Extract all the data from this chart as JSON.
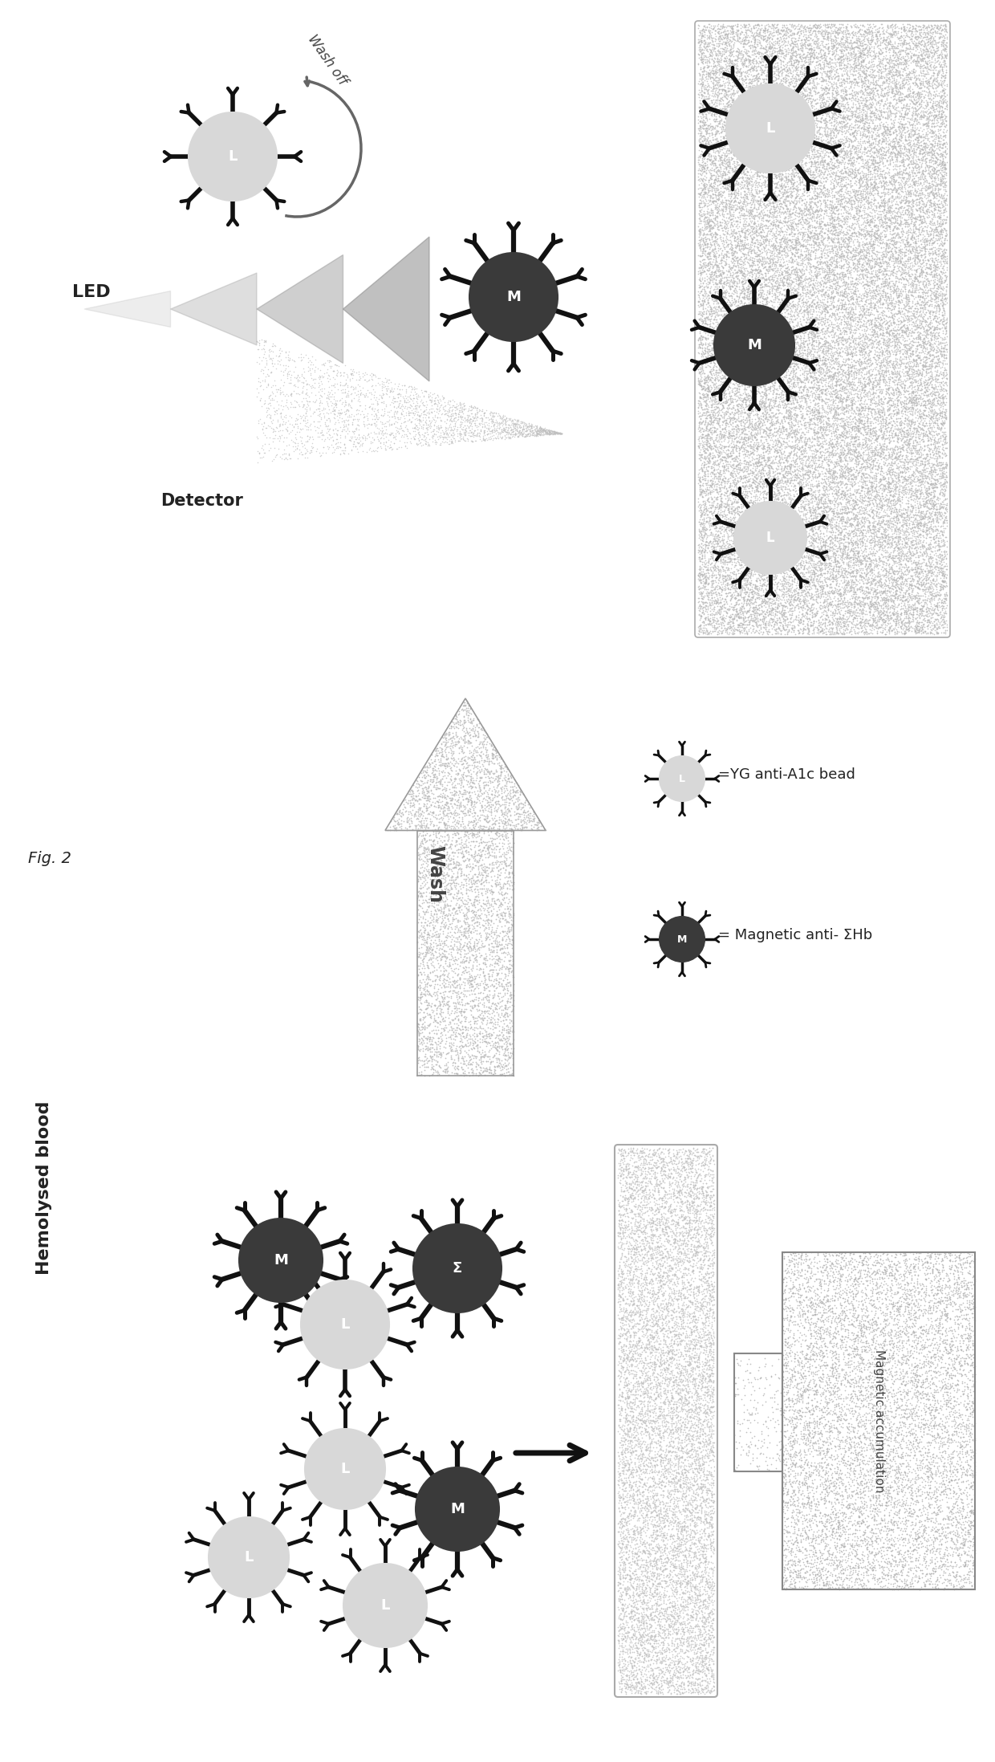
{
  "title": "Fig. 2",
  "fig_width": 12.4,
  "fig_height": 21.95,
  "bg_color": "#ffffff",
  "label_hemolysed": "Hemolysed blood",
  "label_wash": "Wash",
  "label_wash_off": "Wash off",
  "label_LED": "LED",
  "label_Detector": "Detector",
  "label_magnetic_acc": "Magnetic accumulation",
  "legend_YG": "=YG anti-A1c bead",
  "legend_Mag": "= Magnetic anti- ΣHb",
  "dark_bead_color": "#3a3a3a",
  "light_bead_color": "#d8d8d8",
  "arm_color_dark": "#111111",
  "arm_color_light": "#444444",
  "arm_color_gray": "#888888",
  "stipple_color": "#c0c0c0",
  "tube_stipple": "#b8b8b8",
  "magnet_stipple": "#aaaaaa"
}
